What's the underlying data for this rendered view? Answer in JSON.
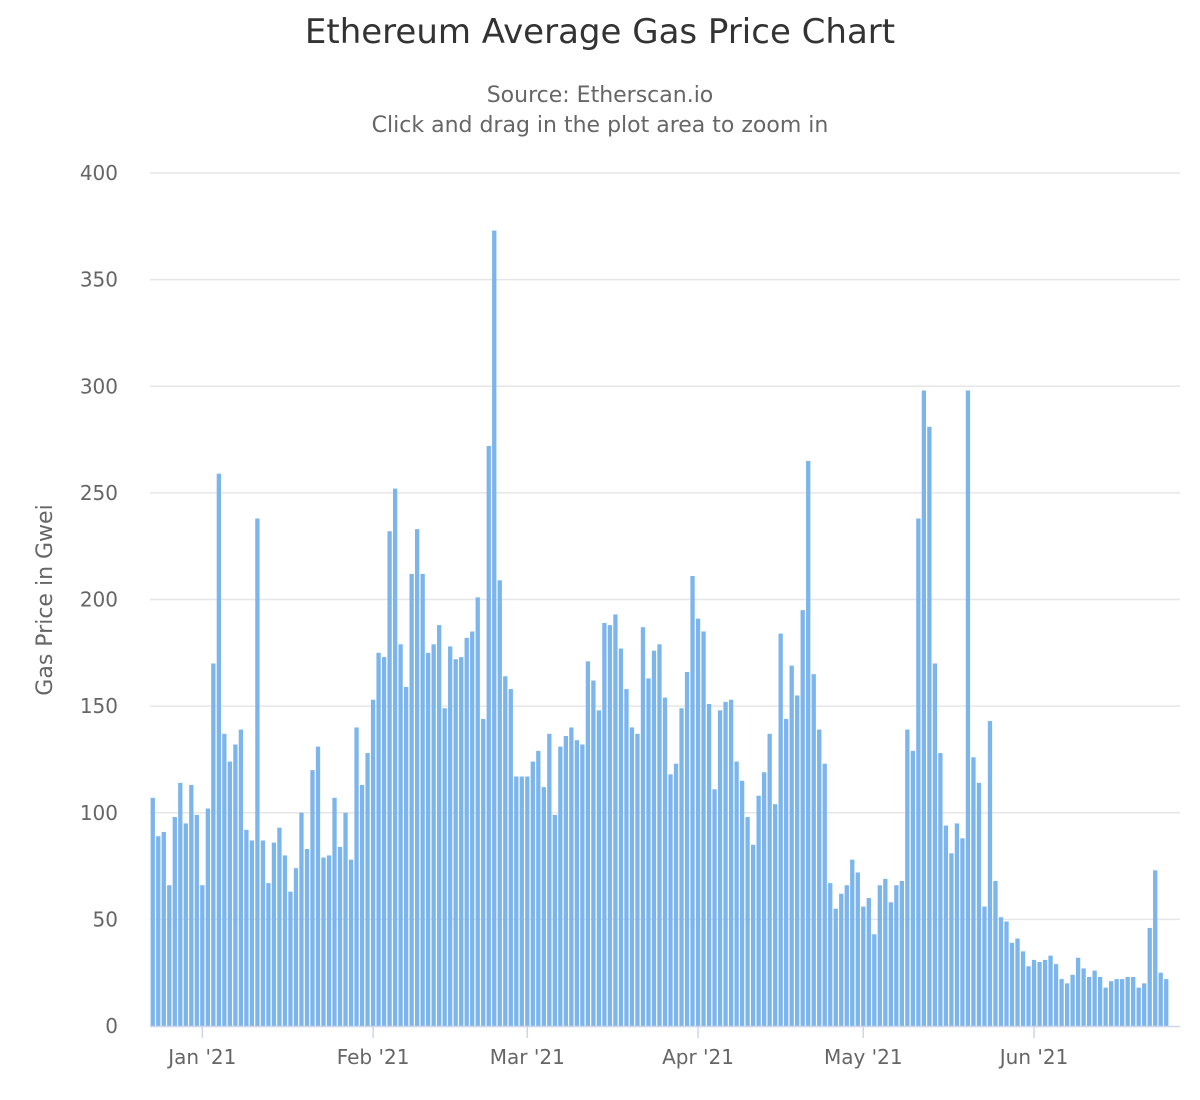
{
  "chart_data": {
    "type": "bar",
    "title": "Ethereum Average Gas Price Chart",
    "subtitle": [
      "Source: Etherscan.io",
      "Click and drag in the plot area to zoom in"
    ],
    "xlabel": "",
    "ylabel": "Gas Price in Gwei",
    "ylim": [
      0,
      400
    ],
    "yticks": [
      0,
      50,
      100,
      150,
      200,
      250,
      300,
      350,
      400
    ],
    "xticks": [
      {
        "label": "Jan '21",
        "date": "2021-01-01"
      },
      {
        "label": "Feb '21",
        "date": "2021-02-01"
      },
      {
        "label": "Mar '21",
        "date": "2021-03-01"
      },
      {
        "label": "Apr '21",
        "date": "2021-04-01"
      },
      {
        "label": "May '21",
        "date": "2021-05-01"
      },
      {
        "label": "Jun '21",
        "date": "2021-06-01"
      }
    ],
    "grid": true,
    "legend": "none",
    "bar_color": "#7cb5ec",
    "x_start": "2020-12-23",
    "x_end": "2021-06-27",
    "values": [
      107,
      89,
      91,
      66,
      98,
      114,
      95,
      113,
      99,
      66,
      102,
      170,
      259,
      137,
      124,
      132,
      139,
      92,
      87,
      238,
      87,
      67,
      86,
      93,
      80,
      63,
      74,
      100,
      83,
      120,
      131,
      79,
      80,
      107,
      84,
      100,
      78,
      140,
      113,
      128,
      153,
      175,
      173,
      232,
      252,
      179,
      159,
      212,
      233,
      212,
      175,
      179,
      188,
      149,
      178,
      172,
      173,
      182,
      185,
      201,
      144,
      272,
      373,
      209,
      164,
      158,
      117,
      117,
      117,
      124,
      129,
      112,
      137,
      99,
      131,
      136,
      140,
      134,
      132,
      171,
      162,
      148,
      189,
      188,
      193,
      177,
      158,
      140,
      137,
      187,
      163,
      176,
      179,
      154,
      118,
      123,
      149,
      166,
      211,
      191,
      185,
      151,
      111,
      148,
      152,
      153,
      124,
      115,
      98,
      85,
      108,
      119,
      137,
      104,
      184,
      144,
      169,
      155,
      195,
      265,
      165,
      139,
      123,
      67,
      55,
      62,
      66,
      78,
      72,
      56,
      60,
      43,
      66,
      69,
      58,
      66,
      68,
      139,
      129,
      238,
      298,
      281,
      170,
      128,
      94,
      81,
      95,
      88,
      298,
      126,
      114,
      56,
      143,
      68,
      51,
      49,
      39,
      41,
      35,
      28,
      31,
      30,
      31,
      33,
      29,
      22,
      20,
      24,
      32,
      27,
      23,
      26,
      23,
      18,
      21,
      22,
      22,
      23,
      23,
      18,
      20,
      46,
      73,
      25,
      22
    ]
  }
}
